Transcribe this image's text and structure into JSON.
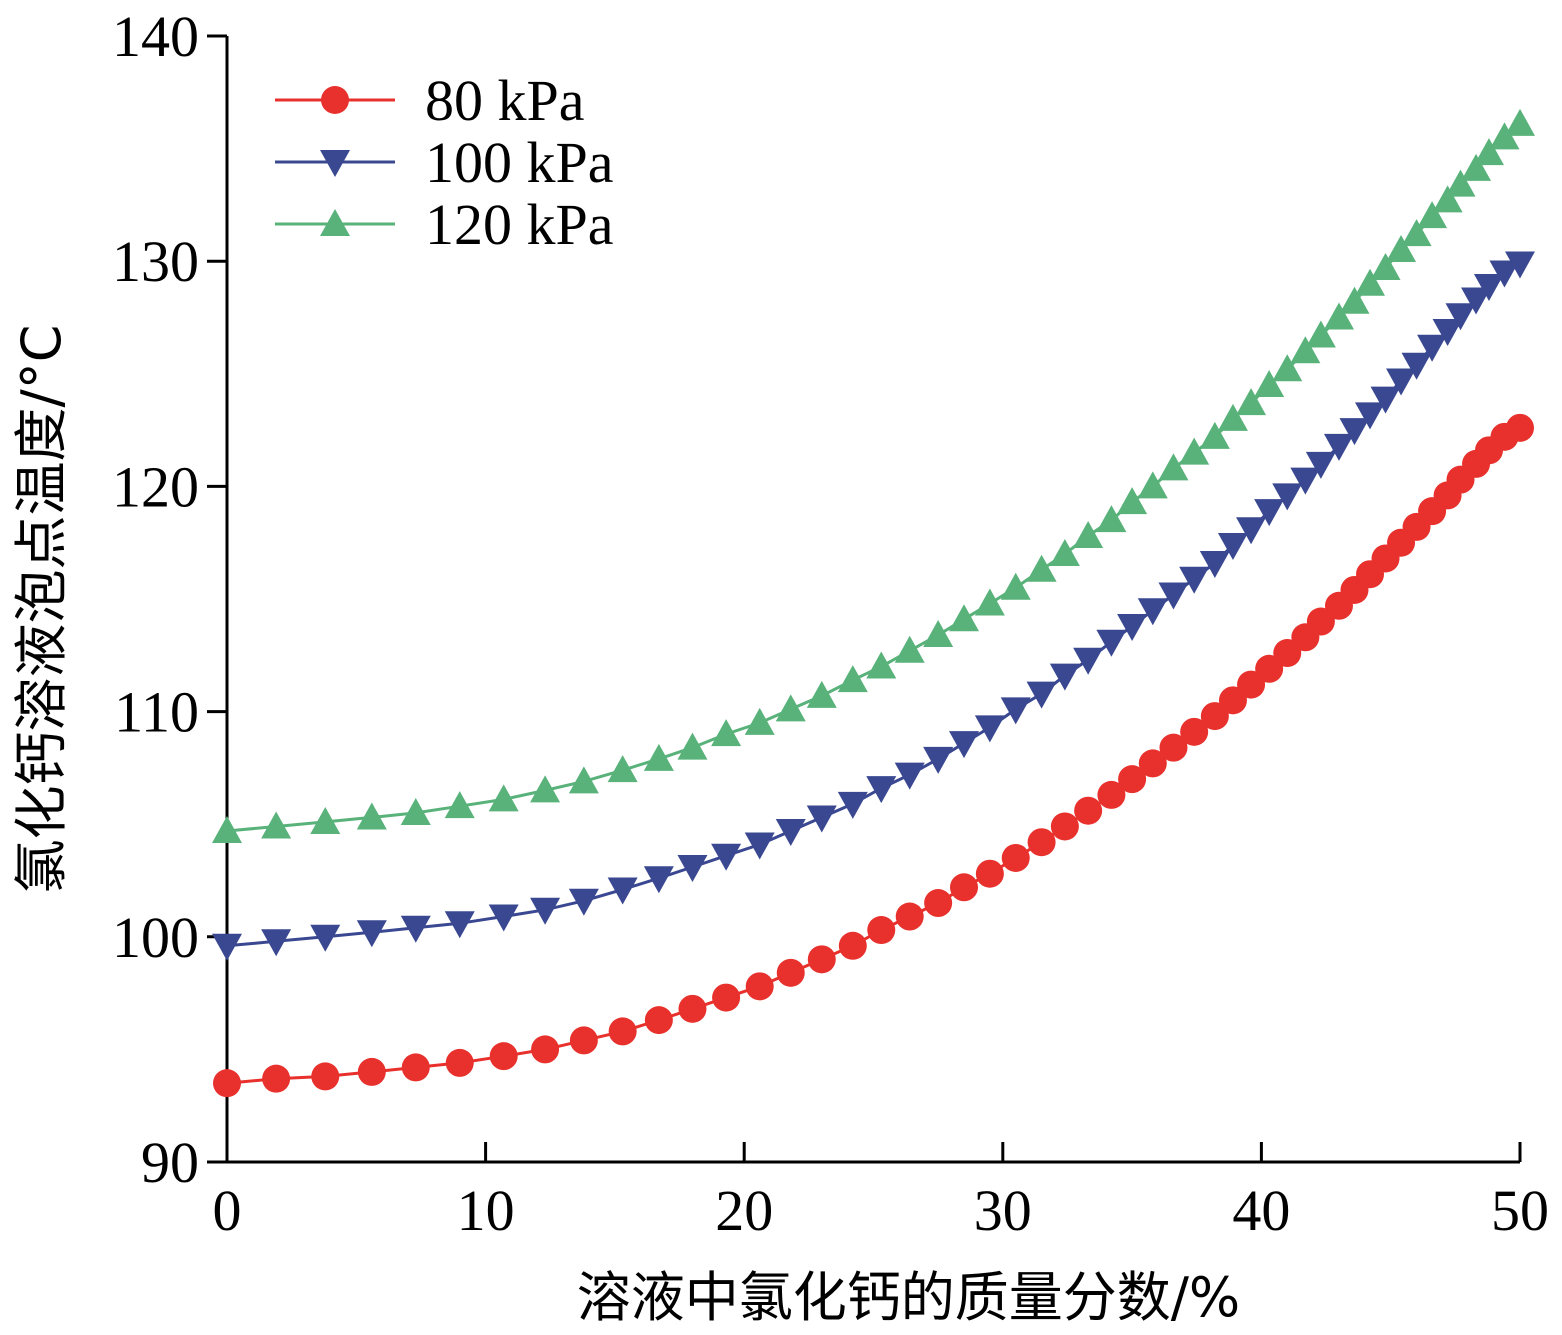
{
  "chart_data": {
    "type": "line",
    "title": "",
    "xlabel": "溶液中氯化钙的质量分数/%",
    "ylabel": "氯化钙溶液泡点温度/°C",
    "xlim": [
      0,
      50
    ],
    "ylim": [
      90,
      140
    ],
    "xticks": [
      0,
      10,
      20,
      30,
      40,
      50
    ],
    "yticks": [
      90,
      100,
      110,
      120,
      130,
      140
    ],
    "grid": false,
    "legend_position": "top-left",
    "series": [
      {
        "name": "80 kPa",
        "color": "#e8302c",
        "marker": "circle",
        "x": [
          0,
          1.9,
          3.8,
          5.6,
          7.3,
          9.0,
          10.7,
          12.3,
          13.8,
          15.3,
          16.7,
          18.0,
          19.3,
          20.6,
          21.8,
          23.0,
          24.2,
          25.3,
          26.4,
          27.5,
          28.5,
          29.5,
          30.5,
          31.5,
          32.4,
          33.3,
          34.2,
          35.0,
          35.8,
          36.6,
          37.4,
          38.2,
          38.9,
          39.6,
          40.3,
          41.0,
          41.7,
          42.3,
          43.0,
          43.6,
          44.2,
          44.8,
          45.4,
          46.0,
          46.6,
          47.2,
          47.7,
          48.3,
          48.8,
          49.4,
          50.0
        ],
        "y": [
          93.5,
          93.7,
          93.8,
          94.0,
          94.2,
          94.4,
          94.7,
          95.0,
          95.4,
          95.8,
          96.3,
          96.8,
          97.3,
          97.8,
          98.4,
          99.0,
          99.6,
          100.3,
          100.9,
          101.5,
          102.2,
          102.8,
          103.5,
          104.2,
          104.9,
          105.6,
          106.3,
          107.0,
          107.7,
          108.4,
          109.1,
          109.8,
          110.5,
          111.2,
          111.9,
          112.6,
          113.3,
          114.0,
          114.7,
          115.4,
          116.1,
          116.8,
          117.5,
          118.2,
          118.9,
          119.6,
          120.3,
          121.0,
          121.6,
          122.2,
          122.6
        ]
      },
      {
        "name": "100 kPa",
        "color": "#3a4892",
        "marker": "triangle-down",
        "x": [
          0,
          1.9,
          3.8,
          5.6,
          7.3,
          9.0,
          10.7,
          12.3,
          13.8,
          15.3,
          16.7,
          18.0,
          19.3,
          20.6,
          21.8,
          23.0,
          24.2,
          25.3,
          26.4,
          27.5,
          28.5,
          29.5,
          30.5,
          31.5,
          32.4,
          33.3,
          34.2,
          35.0,
          35.8,
          36.6,
          37.4,
          38.2,
          38.9,
          39.6,
          40.3,
          41.0,
          41.7,
          42.3,
          43.0,
          43.6,
          44.2,
          44.8,
          45.4,
          46.0,
          46.6,
          47.2,
          47.7,
          48.3,
          48.8,
          49.4,
          50.0
        ],
        "y": [
          99.6,
          99.8,
          100.0,
          100.2,
          100.4,
          100.6,
          100.9,
          101.2,
          101.6,
          102.1,
          102.6,
          103.1,
          103.6,
          104.1,
          104.7,
          105.3,
          105.9,
          106.6,
          107.2,
          107.9,
          108.6,
          109.3,
          110.1,
          110.8,
          111.6,
          112.3,
          113.1,
          113.8,
          114.5,
          115.2,
          115.9,
          116.6,
          117.4,
          118.1,
          118.9,
          119.6,
          120.3,
          121.0,
          121.8,
          122.5,
          123.2,
          123.9,
          124.7,
          125.4,
          126.2,
          126.9,
          127.6,
          128.3,
          128.9,
          129.5,
          129.9
        ]
      },
      {
        "name": "120 kPa",
        "color": "#58b27a",
        "marker": "triangle-up",
        "x": [
          0,
          1.9,
          3.8,
          5.6,
          7.3,
          9.0,
          10.7,
          12.3,
          13.8,
          15.3,
          16.7,
          18.0,
          19.3,
          20.6,
          21.8,
          23.0,
          24.2,
          25.3,
          26.4,
          27.5,
          28.5,
          29.5,
          30.5,
          31.5,
          32.4,
          33.3,
          34.2,
          35.0,
          35.8,
          36.6,
          37.4,
          38.2,
          38.9,
          39.6,
          40.3,
          41.0,
          41.7,
          42.3,
          43.0,
          43.6,
          44.2,
          44.8,
          45.4,
          46.0,
          46.6,
          47.2,
          47.7,
          48.3,
          48.8,
          49.4,
          50.0
        ],
        "y": [
          104.7,
          104.9,
          105.1,
          105.3,
          105.5,
          105.8,
          106.1,
          106.5,
          106.9,
          107.4,
          107.9,
          108.4,
          109.0,
          109.5,
          110.1,
          110.7,
          111.4,
          112.0,
          112.7,
          113.4,
          114.1,
          114.8,
          115.5,
          116.3,
          117.0,
          117.8,
          118.5,
          119.3,
          120.0,
          120.8,
          121.5,
          122.2,
          123.0,
          123.7,
          124.5,
          125.2,
          126.0,
          126.7,
          127.5,
          128.2,
          129.0,
          129.7,
          130.5,
          131.2,
          132.0,
          132.7,
          133.4,
          134.1,
          134.8,
          135.5,
          136.1
        ]
      }
    ]
  }
}
